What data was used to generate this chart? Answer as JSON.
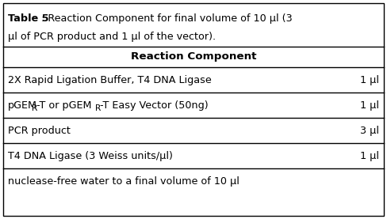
{
  "title_bold": "Table 5",
  "title_line1": ": Reaction Component for final volume of 10 µl (3",
  "title_line2": "µl of PCR product and 1 µl of the vector).",
  "header": "Reaction Component",
  "rows": [
    {
      "left": "2X Rapid Ligation Buffer, T4 DNA Ligase",
      "right": "1 µl"
    },
    {
      "left": "pGEM_R_-T or pGEM_R_-T Easy Vector (50ng)",
      "right": "1 µl"
    },
    {
      "left": "PCR product",
      "right": "3 µl"
    },
    {
      "left": "T4 DNA Ligase (3 Weiss units/µl)",
      "right": "1 µl"
    },
    {
      "left": "nuclease-free water to a final volume of 10 µl",
      "right": ""
    }
  ],
  "border_color": "#000000",
  "bg_color": "#ffffff",
  "text_color": "#000000",
  "font_size": 9.2,
  "title_font_size": 9.2
}
